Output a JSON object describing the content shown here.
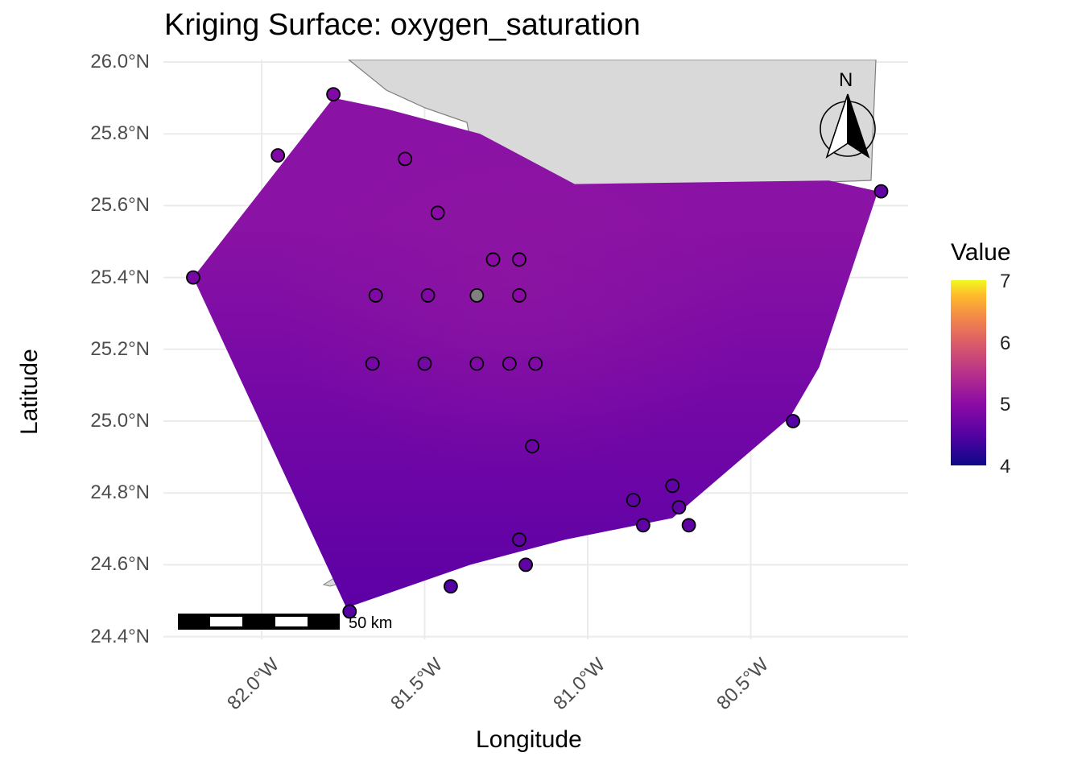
{
  "title": "Kriging Surface: oxygen_saturation",
  "xlabel": "Longitude",
  "ylabel": "Latitude",
  "legend": {
    "title": "Value",
    "ticks": [
      "7",
      "6",
      "5",
      "4"
    ],
    "range": [
      4,
      7
    ],
    "colormap": "plasma"
  },
  "y_ticks": [
    "26.0°N",
    "25.8°N",
    "25.6°N",
    "25.4°N",
    "25.2°N",
    "25.0°N",
    "24.8°N",
    "24.6°N",
    "24.4°N"
  ],
  "x_ticks": [
    "82.0°W",
    "81.5°W",
    "81.0°W",
    "80.5°W"
  ],
  "scale_bar": {
    "label": "50 km"
  },
  "north_arrow": {
    "label": "N"
  },
  "colors": {
    "land": "#d9d9d9",
    "land_stroke": "#7f7f7f",
    "grid": "#ebebeb",
    "surface_dark": "#6000a6",
    "surface_light": "#8a12a4"
  },
  "chart_data": {
    "type": "heatmap",
    "xlim": [
      -82.3,
      -80.0
    ],
    "ylim": [
      24.4,
      26.0
    ],
    "surface_boundary": [
      [
        -82.21,
        25.4
      ],
      [
        -81.78,
        25.9
      ],
      [
        -81.62,
        25.87
      ],
      [
        -81.33,
        25.8
      ],
      [
        -81.04,
        25.66
      ],
      [
        -80.26,
        25.67
      ],
      [
        -80.11,
        25.64
      ],
      [
        -80.29,
        25.15
      ],
      [
        -80.38,
        25.01
      ],
      [
        -80.74,
        24.73
      ],
      [
        -81.07,
        24.67
      ],
      [
        -81.36,
        24.6
      ],
      [
        -81.74,
        24.48
      ]
    ],
    "sample_points": [
      {
        "lon": -81.78,
        "lat": 25.91,
        "value": 4.9
      },
      {
        "lon": -81.95,
        "lat": 25.74,
        "value": 4.9
      },
      {
        "lon": -81.56,
        "lat": 25.73,
        "value": 5.0
      },
      {
        "lon": -81.46,
        "lat": 25.58,
        "value": 5.0
      },
      {
        "lon": -81.29,
        "lat": 25.45,
        "value": 5.0
      },
      {
        "lon": -81.21,
        "lat": 25.45,
        "value": 5.0
      },
      {
        "lon": -82.21,
        "lat": 25.4,
        "value": 4.8
      },
      {
        "lon": -81.65,
        "lat": 25.35,
        "value": 4.9
      },
      {
        "lon": -81.49,
        "lat": 25.35,
        "value": 4.9
      },
      {
        "lon": -81.34,
        "lat": 25.35,
        "value": null
      },
      {
        "lon": -81.21,
        "lat": 25.35,
        "value": 5.0
      },
      {
        "lon": -81.66,
        "lat": 25.16,
        "value": 4.8
      },
      {
        "lon": -81.5,
        "lat": 25.16,
        "value": 4.8
      },
      {
        "lon": -81.34,
        "lat": 25.16,
        "value": 4.9
      },
      {
        "lon": -81.24,
        "lat": 25.16,
        "value": 4.9
      },
      {
        "lon": -81.16,
        "lat": 25.16,
        "value": 4.9
      },
      {
        "lon": -80.37,
        "lat": 25.0,
        "value": 4.5
      },
      {
        "lon": -81.17,
        "lat": 24.93,
        "value": 4.7
      },
      {
        "lon": -80.74,
        "lat": 24.82,
        "value": 4.6
      },
      {
        "lon": -80.86,
        "lat": 24.78,
        "value": 4.6
      },
      {
        "lon": -80.72,
        "lat": 24.76,
        "value": 4.6
      },
      {
        "lon": -80.83,
        "lat": 24.71,
        "value": 4.6
      },
      {
        "lon": -80.69,
        "lat": 24.71,
        "value": 4.6
      },
      {
        "lon": -81.21,
        "lat": 24.67,
        "value": 4.6
      },
      {
        "lon": -81.19,
        "lat": 24.6,
        "value": 4.6
      },
      {
        "lon": -81.42,
        "lat": 24.54,
        "value": 4.5
      },
      {
        "lon": -81.73,
        "lat": 24.47,
        "value": 4.5
      },
      {
        "lon": -80.1,
        "lat": 25.64,
        "value": 4.6
      }
    ]
  }
}
